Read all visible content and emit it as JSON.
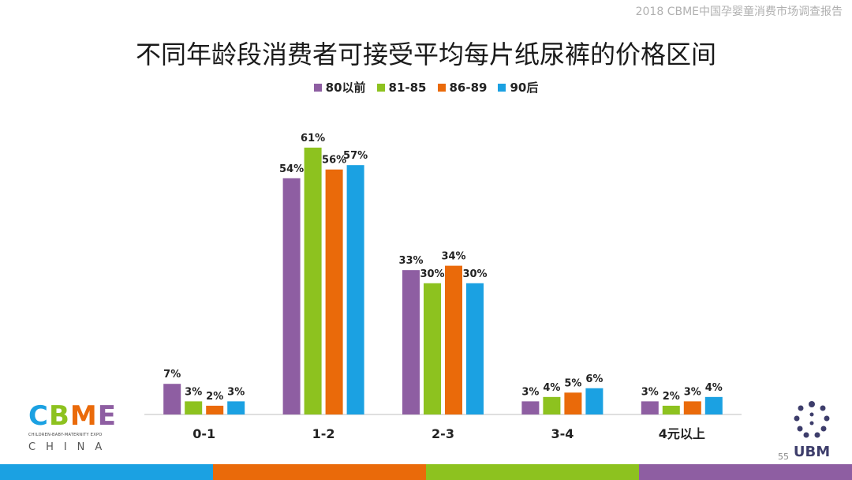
{
  "header_note": "2018 CBME中国孕婴童消费市场调查报告",
  "page_number": "55",
  "logos": {
    "cbme": {
      "letters": [
        "C",
        "B",
        "M",
        "E"
      ],
      "tagline": "CHILDREN-BABY-MATERNITY EXPO",
      "country": "CHINA"
    },
    "ubm": {
      "text": "UBM"
    }
  },
  "colors": {
    "purple": "#8e5ea2",
    "green": "#8dc21f",
    "orange": "#ea6a0a",
    "blue": "#1ba1e2",
    "axis": "#bfbfbf"
  },
  "chart_data": {
    "type": "bar",
    "title": "不同年龄段消费者可接受平均每片纸尿裤的价格区间",
    "categories": [
      "0-1",
      "1-2",
      "2-3",
      "3-4",
      "4元以上"
    ],
    "series": [
      {
        "name": "80以前",
        "color": "#8e5ea2",
        "values": [
          7,
          54,
          33,
          3,
          3
        ],
        "labels": [
          "7%",
          "54%",
          "33%",
          "3%",
          "3%"
        ]
      },
      {
        "name": "81-85",
        "color": "#8dc21f",
        "values": [
          3,
          61,
          30,
          4,
          2
        ],
        "labels": [
          "3%",
          "61%",
          "30%",
          "4%",
          "2%"
        ]
      },
      {
        "name": "86-89",
        "color": "#ea6a0a",
        "values": [
          2,
          56,
          34,
          5,
          3
        ],
        "labels": [
          "2%",
          "56%",
          "34%",
          "5%",
          "3%"
        ]
      },
      {
        "name": "90后",
        "color": "#1ba1e2",
        "values": [
          3,
          57,
          30,
          6,
          4
        ],
        "labels": [
          "3%",
          "57%",
          "30%",
          "6%",
          "4%"
        ]
      }
    ],
    "ylim": [
      0,
      61
    ],
    "legend_position": "top-center",
    "grid": false
  },
  "footer_colors": [
    "#1ba1e2",
    "#ea6a0a",
    "#8dc21f",
    "#8e5ea2"
  ]
}
